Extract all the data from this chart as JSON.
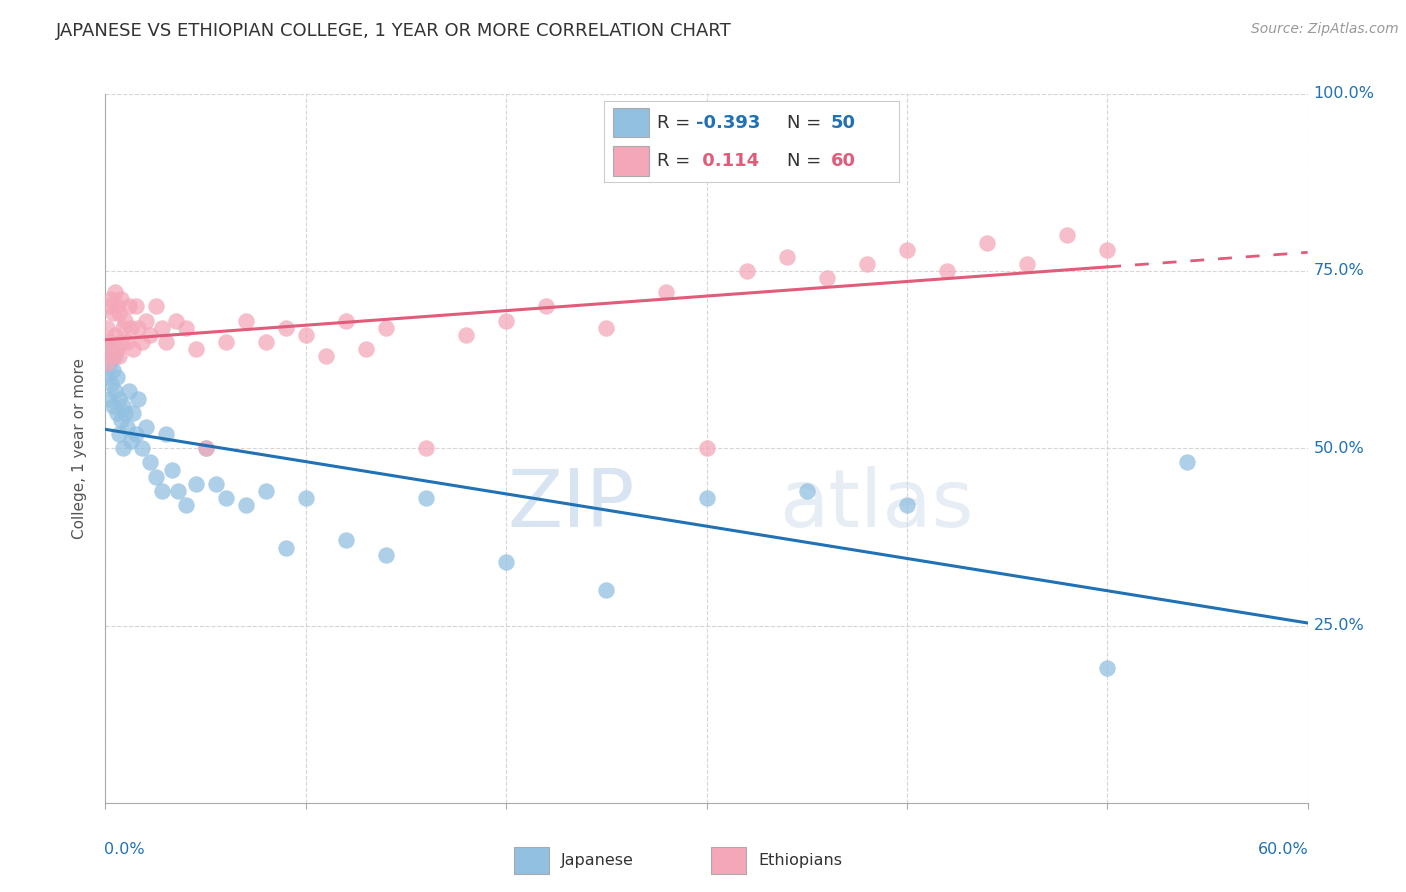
{
  "title": "JAPANESE VS ETHIOPIAN COLLEGE, 1 YEAR OR MORE CORRELATION CHART",
  "source_text": "Source: ZipAtlas.com",
  "ylabel": "College, 1 year or more",
  "legend_r_japanese": "-0.393",
  "legend_n_japanese": "50",
  "legend_r_ethiopian": "0.114",
  "legend_n_ethiopian": "60",
  "japanese_color": "#92c0e0",
  "ethiopian_color": "#f4a7b9",
  "japanese_line_color": "#2171b5",
  "ethiopian_line_color": "#e05c7a",
  "watermark_color": "#c6dff0",
  "watermark_color2": "#c8d8e8",
  "japanese_x": [
    0.001,
    0.002,
    0.002,
    0.003,
    0.003,
    0.004,
    0.004,
    0.005,
    0.005,
    0.006,
    0.006,
    0.007,
    0.007,
    0.008,
    0.009,
    0.009,
    0.01,
    0.011,
    0.012,
    0.013,
    0.014,
    0.015,
    0.016,
    0.018,
    0.02,
    0.022,
    0.025,
    0.028,
    0.03,
    0.033,
    0.036,
    0.04,
    0.045,
    0.05,
    0.055,
    0.06,
    0.07,
    0.08,
    0.09,
    0.1,
    0.12,
    0.14,
    0.16,
    0.2,
    0.25,
    0.3,
    0.35,
    0.4,
    0.5,
    0.54
  ],
  "japanese_y": [
    0.6,
    0.62,
    0.57,
    0.59,
    0.64,
    0.61,
    0.56,
    0.58,
    0.63,
    0.6,
    0.55,
    0.57,
    0.52,
    0.54,
    0.56,
    0.5,
    0.55,
    0.53,
    0.58,
    0.51,
    0.55,
    0.52,
    0.57,
    0.5,
    0.53,
    0.48,
    0.46,
    0.44,
    0.52,
    0.47,
    0.44,
    0.42,
    0.45,
    0.5,
    0.45,
    0.43,
    0.42,
    0.44,
    0.36,
    0.43,
    0.37,
    0.35,
    0.43,
    0.34,
    0.3,
    0.43,
    0.44,
    0.42,
    0.19,
    0.48
  ],
  "ethiopian_x": [
    0.001,
    0.001,
    0.002,
    0.002,
    0.003,
    0.003,
    0.004,
    0.004,
    0.005,
    0.005,
    0.006,
    0.006,
    0.007,
    0.007,
    0.008,
    0.008,
    0.009,
    0.01,
    0.011,
    0.012,
    0.013,
    0.014,
    0.015,
    0.016,
    0.018,
    0.02,
    0.022,
    0.025,
    0.028,
    0.03,
    0.035,
    0.04,
    0.045,
    0.05,
    0.06,
    0.07,
    0.08,
    0.09,
    0.1,
    0.11,
    0.12,
    0.13,
    0.14,
    0.16,
    0.18,
    0.2,
    0.22,
    0.25,
    0.28,
    0.3,
    0.32,
    0.34,
    0.36,
    0.38,
    0.4,
    0.42,
    0.44,
    0.46,
    0.48,
    0.5
  ],
  "ethiopian_y": [
    0.62,
    0.67,
    0.64,
    0.7,
    0.65,
    0.71,
    0.63,
    0.69,
    0.66,
    0.72,
    0.64,
    0.7,
    0.63,
    0.69,
    0.65,
    0.71,
    0.67,
    0.68,
    0.65,
    0.7,
    0.67,
    0.64,
    0.7,
    0.67,
    0.65,
    0.68,
    0.66,
    0.7,
    0.67,
    0.65,
    0.68,
    0.67,
    0.64,
    0.5,
    0.65,
    0.68,
    0.65,
    0.67,
    0.66,
    0.63,
    0.68,
    0.64,
    0.67,
    0.5,
    0.66,
    0.68,
    0.7,
    0.67,
    0.72,
    0.5,
    0.75,
    0.77,
    0.74,
    0.76,
    0.78,
    0.75,
    0.79,
    0.76,
    0.8,
    0.78
  ],
  "xmin": 0.0,
  "xmax": 0.6,
  "ymin": 0.0,
  "ymax": 1.0,
  "background_color": "#ffffff",
  "grid_color": "#cccccc",
  "title_color": "#333333",
  "axis_label_color": "#2171b5",
  "source_color": "#999999",
  "ylabel_color": "#555555"
}
